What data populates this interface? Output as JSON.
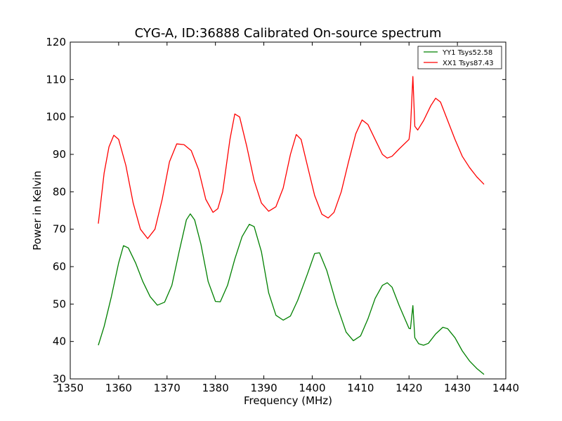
{
  "chart_data": {
    "type": "line",
    "title": "CYG-A, ID:36888 Calibrated On-source spectrum",
    "xlabel": "Frequency (MHz)",
    "ylabel": "Power in Kelvin",
    "xlim": [
      1350,
      1440
    ],
    "ylim": [
      30,
      120
    ],
    "xticks": [
      1350,
      1360,
      1370,
      1380,
      1390,
      1400,
      1410,
      1420,
      1430,
      1440
    ],
    "yticks": [
      30,
      40,
      50,
      60,
      70,
      80,
      90,
      100,
      110,
      120
    ],
    "grid": false,
    "legend_position": "top-right",
    "series": [
      {
        "name": "YY1 Tsys52.58",
        "color": "#008000",
        "points": [
          [
            1355.8,
            39.0
          ],
          [
            1357.0,
            44.0
          ],
          [
            1358.5,
            52.0
          ],
          [
            1360.0,
            61.0
          ],
          [
            1361.0,
            65.6
          ],
          [
            1362.0,
            65.0
          ],
          [
            1363.5,
            61.0
          ],
          [
            1365.0,
            56.0
          ],
          [
            1366.5,
            52.0
          ],
          [
            1368.0,
            49.7
          ],
          [
            1369.5,
            50.5
          ],
          [
            1371.0,
            55.0
          ],
          [
            1372.5,
            64.0
          ],
          [
            1374.0,
            72.5
          ],
          [
            1374.8,
            74.1
          ],
          [
            1375.7,
            72.5
          ],
          [
            1377.0,
            66.0
          ],
          [
            1378.5,
            56.0
          ],
          [
            1380.0,
            50.7
          ],
          [
            1381.0,
            50.6
          ],
          [
            1382.5,
            55.0
          ],
          [
            1384.0,
            62.0
          ],
          [
            1385.5,
            68.0
          ],
          [
            1387.0,
            71.3
          ],
          [
            1388.0,
            70.7
          ],
          [
            1389.5,
            64.0
          ],
          [
            1391.0,
            53.0
          ],
          [
            1392.5,
            47.0
          ],
          [
            1394.0,
            45.7
          ],
          [
            1395.5,
            46.8
          ],
          [
            1397.0,
            51.0
          ],
          [
            1399.0,
            58.0
          ],
          [
            1400.5,
            63.5
          ],
          [
            1401.5,
            63.7
          ],
          [
            1403.0,
            59.0
          ],
          [
            1405.0,
            50.0
          ],
          [
            1407.0,
            42.5
          ],
          [
            1408.5,
            40.2
          ],
          [
            1410.0,
            41.5
          ],
          [
            1411.5,
            46.0
          ],
          [
            1413.0,
            51.5
          ],
          [
            1414.5,
            55.0
          ],
          [
            1415.5,
            55.7
          ],
          [
            1416.5,
            54.5
          ],
          [
            1418.0,
            49.5
          ],
          [
            1420.0,
            43.5
          ],
          [
            1420.3,
            43.4
          ],
          [
            1420.8,
            49.6
          ],
          [
            1421.2,
            41.0
          ],
          [
            1422.0,
            39.4
          ],
          [
            1423.0,
            39.0
          ],
          [
            1424.0,
            39.5
          ],
          [
            1425.5,
            42.0
          ],
          [
            1427.0,
            43.8
          ],
          [
            1428.0,
            43.4
          ],
          [
            1429.5,
            41.0
          ],
          [
            1431.0,
            37.5
          ],
          [
            1432.5,
            34.8
          ],
          [
            1434.0,
            32.8
          ],
          [
            1435.5,
            31.2
          ]
        ]
      },
      {
        "name": "XX1 Tsys87.43",
        "color": "#ff0000",
        "points": [
          [
            1355.8,
            71.5
          ],
          [
            1357.0,
            85.0
          ],
          [
            1358.0,
            92.0
          ],
          [
            1359.0,
            95.1
          ],
          [
            1360.0,
            94.0
          ],
          [
            1361.5,
            87.0
          ],
          [
            1363.0,
            77.0
          ],
          [
            1364.5,
            70.0
          ],
          [
            1366.0,
            67.5
          ],
          [
            1367.5,
            70.0
          ],
          [
            1369.0,
            78.0
          ],
          [
            1370.5,
            88.0
          ],
          [
            1372.0,
            92.8
          ],
          [
            1373.5,
            92.6
          ],
          [
            1375.0,
            91.0
          ],
          [
            1376.5,
            86.0
          ],
          [
            1378.0,
            78.0
          ],
          [
            1379.5,
            74.5
          ],
          [
            1380.5,
            75.5
          ],
          [
            1381.5,
            80.0
          ],
          [
            1383.0,
            94.0
          ],
          [
            1384.0,
            100.8
          ],
          [
            1385.0,
            100.0
          ],
          [
            1386.5,
            92.0
          ],
          [
            1388.0,
            83.0
          ],
          [
            1389.5,
            77.0
          ],
          [
            1391.0,
            74.8
          ],
          [
            1392.5,
            76.0
          ],
          [
            1394.0,
            81.0
          ],
          [
            1395.5,
            90.0
          ],
          [
            1396.7,
            95.3
          ],
          [
            1397.7,
            94.0
          ],
          [
            1399.0,
            87.0
          ],
          [
            1400.5,
            79.0
          ],
          [
            1402.0,
            74.0
          ],
          [
            1403.3,
            73.0
          ],
          [
            1404.5,
            74.5
          ],
          [
            1406.0,
            80.0
          ],
          [
            1407.5,
            88.0
          ],
          [
            1409.0,
            95.5
          ],
          [
            1410.3,
            99.2
          ],
          [
            1411.5,
            98.0
          ],
          [
            1413.0,
            94.0
          ],
          [
            1414.5,
            90.0
          ],
          [
            1415.5,
            89.0
          ],
          [
            1416.5,
            89.5
          ],
          [
            1418.0,
            91.5
          ],
          [
            1420.0,
            94.0
          ],
          [
            1420.3,
            97.0
          ],
          [
            1420.8,
            110.8
          ],
          [
            1421.2,
            97.5
          ],
          [
            1421.8,
            96.5
          ],
          [
            1423.0,
            99.0
          ],
          [
            1424.5,
            103.0
          ],
          [
            1425.5,
            105.0
          ],
          [
            1426.5,
            104.0
          ],
          [
            1428.0,
            99.0
          ],
          [
            1429.5,
            94.0
          ],
          [
            1431.0,
            89.5
          ],
          [
            1432.5,
            86.5
          ],
          [
            1434.0,
            84.0
          ],
          [
            1435.5,
            82.0
          ]
        ]
      }
    ]
  }
}
